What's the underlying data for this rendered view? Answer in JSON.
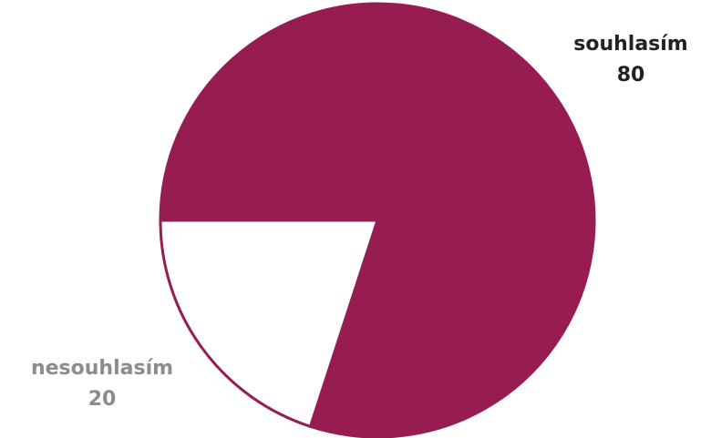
{
  "chart_data": {
    "type": "pie",
    "slices": [
      {
        "label": "souhlasím",
        "value": 80,
        "value_label": "80",
        "color": "#961C52",
        "label_color": "#222222"
      },
      {
        "label": "nesouhlasím",
        "value": 20,
        "value_label": "20",
        "color": "#FFFFFF",
        "label_color": "#8C8C8C"
      }
    ],
    "start_angle_deg": 180,
    "direction": "clockwise",
    "edge_color": "#961C52"
  }
}
